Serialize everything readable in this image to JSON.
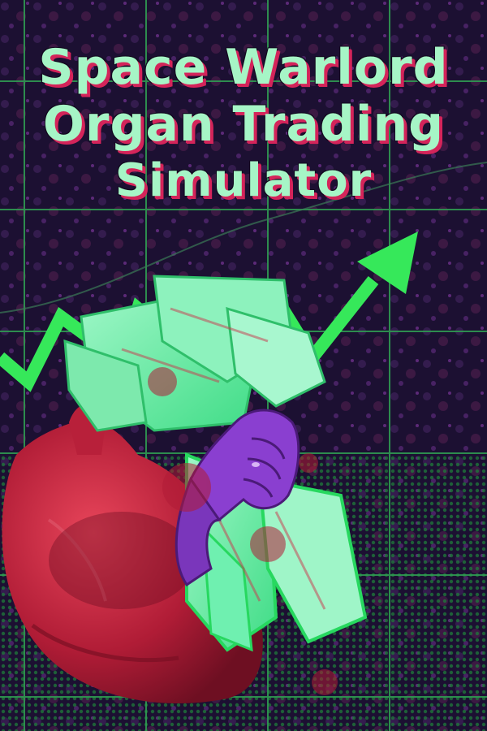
{
  "title": {
    "line1": "Space Warlord",
    "line2": "Organ Trading",
    "line3": "Simulator"
  },
  "colors": {
    "background": "#1b1030",
    "grid": "#2f9a52",
    "arrow": "#36e85a",
    "title_fill": "#a6f5c6",
    "title_shadow": "#d4245a",
    "heart": "#c8233e",
    "hand": "#8a3fd0",
    "cash": "#6ff0b0"
  },
  "art": {
    "elements": [
      "stock-chart-grid",
      "upward-trend-arrow",
      "heart-organ",
      "purple-hand",
      "cash-bundle"
    ]
  }
}
